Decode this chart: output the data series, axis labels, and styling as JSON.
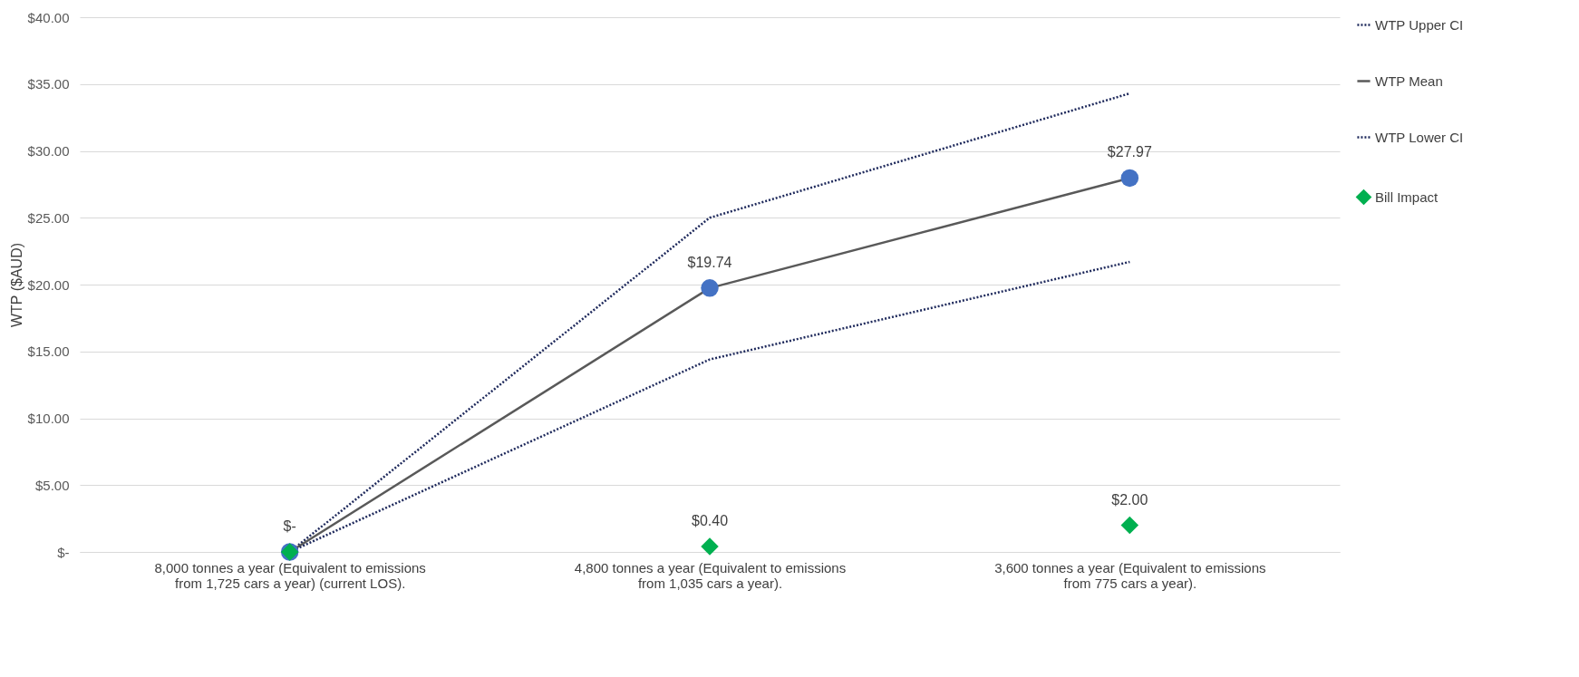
{
  "chart_data": {
    "type": "line",
    "ylabel": "WTP ($AUD)",
    "categories": [
      "8,000 tonnes a year (Equivalent to emissions from 1,725 cars a year) (current LOS).",
      "4,800 tonnes a year (Equivalent to emissions from 1,035 cars a year).",
      "3,600 tonnes a year (Equivalent to emissions from 775 cars a year)."
    ],
    "series": [
      {
        "name": "WTP Upper CI",
        "color": "#1f2a5c",
        "line_style": "dotted",
        "marker": "none",
        "values": [
          0,
          25.0,
          34.3
        ]
      },
      {
        "name": "WTP Mean",
        "color": "#595959",
        "colors": [
          "#4472c4",
          "#4472c4",
          "#4472c4"
        ],
        "line_style": "solid",
        "marker": "circle",
        "values": [
          0,
          19.74,
          27.97
        ],
        "value_labels": [
          "$-",
          "$19.74",
          "$27.97"
        ]
      },
      {
        "name": "WTP Lower CI",
        "color": "#1f2a5c",
        "line_style": "dotted",
        "marker": "none",
        "values": [
          0,
          14.4,
          21.7
        ]
      },
      {
        "name": "Bill Impact",
        "type": "scatter",
        "color": "#00b050",
        "marker": "diamond",
        "values": [
          0,
          0.4,
          2.0
        ],
        "value_labels": [
          null,
          "$0.40",
          "$2.00"
        ]
      }
    ],
    "ylim": [
      0,
      40
    ],
    "yticks": [
      {
        "value": 0,
        "label": "$-"
      },
      {
        "value": 5,
        "label": "$5.00"
      },
      {
        "value": 10,
        "label": "$10.00"
      },
      {
        "value": 15,
        "label": "$15.00"
      },
      {
        "value": 20,
        "label": "$20.00"
      },
      {
        "value": 25,
        "label": "$25.00"
      },
      {
        "value": 30,
        "label": "$30.00"
      },
      {
        "value": 35,
        "label": "$35.00"
      },
      {
        "value": 40,
        "label": "$40.00"
      }
    ],
    "grid": "y",
    "legend": "right"
  }
}
